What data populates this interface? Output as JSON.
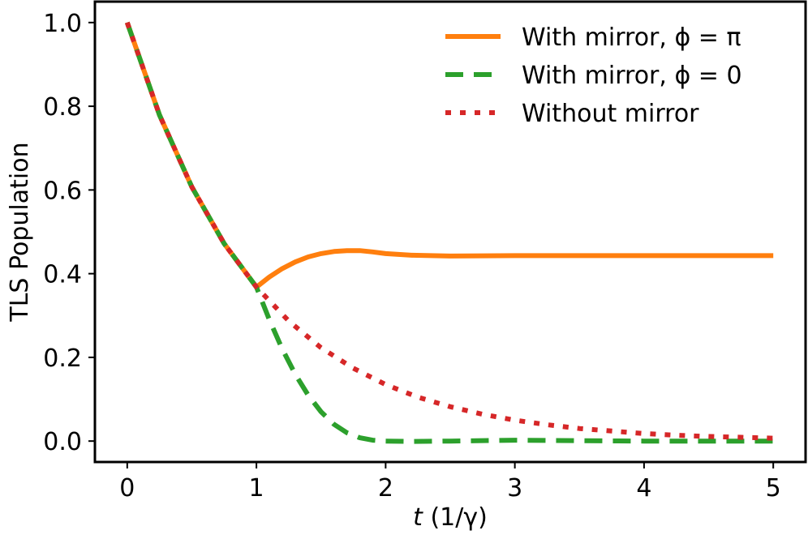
{
  "chart_data": {
    "type": "line",
    "title": "",
    "xlabel": "t (1/γ)",
    "xlabel_var": "t",
    "xlabel_rest": " (1/γ)",
    "ylabel": "TLS Population",
    "xlim": [
      -0.25,
      5.25
    ],
    "ylim": [
      -0.05,
      1.05
    ],
    "xticks": [
      0,
      1,
      2,
      3,
      4,
      5
    ],
    "yticks": [
      0.0,
      0.2,
      0.4,
      0.6,
      0.8,
      1.0
    ],
    "ytick_labels": [
      "0.0",
      "0.2",
      "0.4",
      "0.6",
      "0.8",
      "1.0"
    ],
    "grid": false,
    "legend_position": "top-right",
    "series": [
      {
        "name": "With mirror, ϕ = π",
        "color": "#ff7f0e",
        "style": "solid",
        "x": [
          0,
          0.25,
          0.5,
          0.75,
          1.0,
          1.1,
          1.2,
          1.3,
          1.4,
          1.5,
          1.6,
          1.7,
          1.8,
          1.9,
          2.0,
          2.2,
          2.5,
          3.0,
          3.5,
          4.0,
          4.5,
          5.0
        ],
        "y": [
          1.0,
          0.779,
          0.607,
          0.472,
          0.368,
          0.392,
          0.412,
          0.428,
          0.44,
          0.448,
          0.453,
          0.455,
          0.455,
          0.452,
          0.448,
          0.444,
          0.442,
          0.443,
          0.443,
          0.443,
          0.443,
          0.443
        ]
      },
      {
        "name": "With mirror, ϕ = 0",
        "color": "#2ca02c",
        "style": "dashed",
        "x": [
          0,
          0.25,
          0.5,
          0.75,
          1.0,
          1.1,
          1.2,
          1.3,
          1.4,
          1.5,
          1.6,
          1.7,
          1.8,
          1.9,
          2.0,
          2.2,
          2.5,
          3.0,
          3.5,
          4.0,
          4.5,
          5.0
        ],
        "y": [
          1.0,
          0.779,
          0.607,
          0.472,
          0.368,
          0.29,
          0.22,
          0.16,
          0.11,
          0.07,
          0.04,
          0.02,
          0.008,
          0.002,
          0.0,
          -0.001,
          0.0,
          0.002,
          0.001,
          0.0,
          0.0,
          0.0
        ]
      },
      {
        "name": "Without mirror",
        "color": "#d62728",
        "style": "dotted",
        "x": [
          0,
          0.25,
          0.5,
          0.75,
          1.0,
          1.25,
          1.5,
          1.75,
          2.0,
          2.25,
          2.5,
          2.75,
          3.0,
          3.25,
          3.5,
          3.75,
          4.0,
          4.25,
          4.5,
          4.75,
          5.0
        ],
        "y": [
          1.0,
          0.779,
          0.607,
          0.472,
          0.368,
          0.287,
          0.223,
          0.174,
          0.135,
          0.105,
          0.082,
          0.064,
          0.05,
          0.039,
          0.03,
          0.024,
          0.018,
          0.014,
          0.011,
          0.009,
          0.007
        ]
      }
    ]
  }
}
